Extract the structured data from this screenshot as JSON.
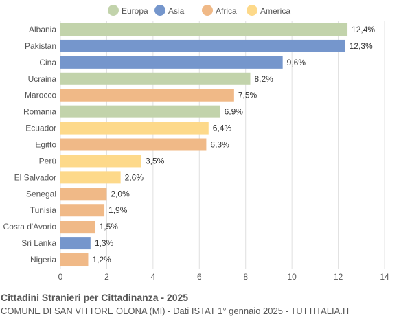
{
  "chart_data": {
    "type": "bar",
    "orientation": "horizontal",
    "title": "Cittadini Stranieri per Cittadinanza - 2025",
    "subtitle": "COMUNE DI SAN VITTORE OLONA (MI) - Dati ISTAT 1° gennaio 2025 - TUTTITALIA.IT",
    "legend": {
      "placement": "top",
      "entries": [
        {
          "name": "Europa",
          "color": "#c2d3ab"
        },
        {
          "name": "Asia",
          "color": "#7596cc"
        },
        {
          "name": "Africa",
          "color": "#f0b987"
        },
        {
          "name": "America",
          "color": "#fdd98a"
        }
      ]
    },
    "categories": [
      "Albania",
      "Pakistan",
      "Cina",
      "Ucraina",
      "Marocco",
      "Romania",
      "Ecuador",
      "Egitto",
      "Perù",
      "El Salvador",
      "Senegal",
      "Tunisia",
      "Costa d'Avorio",
      "Sri Lanka",
      "Nigeria"
    ],
    "values": [
      12.4,
      12.3,
      9.6,
      8.2,
      7.5,
      6.9,
      6.4,
      6.3,
      3.5,
      2.6,
      2.0,
      1.9,
      1.5,
      1.3,
      1.2
    ],
    "labels": [
      "12,4%",
      "12,3%",
      "9,6%",
      "8,2%",
      "7,5%",
      "6,9%",
      "6,4%",
      "6,3%",
      "3,5%",
      "2,6%",
      "2,0%",
      "1,9%",
      "1,5%",
      "1,3%",
      "1,2%"
    ],
    "groups": [
      "Europa",
      "Asia",
      "Asia",
      "Europa",
      "Africa",
      "Europa",
      "America",
      "Africa",
      "America",
      "America",
      "Africa",
      "Africa",
      "Africa",
      "Asia",
      "Africa"
    ],
    "xlim": [
      0,
      14
    ],
    "xticks": [
      "0",
      "2",
      "4",
      "6",
      "8",
      "10",
      "12",
      "14"
    ],
    "grid": true
  }
}
